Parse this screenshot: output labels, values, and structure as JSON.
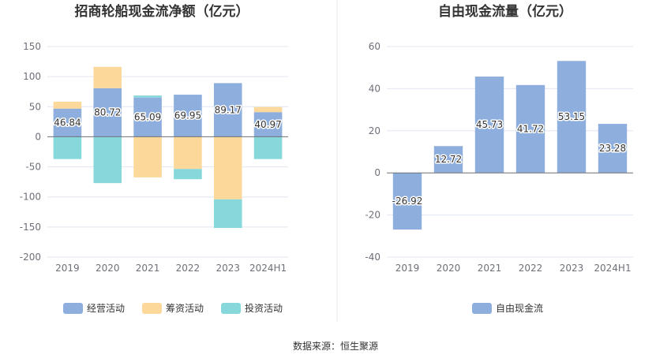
{
  "chart_data": [
    {
      "type": "bar",
      "stacked": true,
      "title": "招商轮船现金流净额（亿元）",
      "categories": [
        "2019",
        "2020",
        "2021",
        "2022",
        "2023",
        "2024H1"
      ],
      "ylim": [
        -200,
        150
      ],
      "yticks": [
        150,
        100,
        50,
        0,
        -50,
        -100,
        -150,
        -200
      ],
      "grid": true,
      "legend_position": "bottom",
      "series": [
        {
          "name": "经营活动",
          "color": "#8eaedd",
          "values": [
            46.84,
            80.72,
            65.09,
            69.95,
            89.17,
            40.97
          ]
        },
        {
          "name": "筹资活动",
          "color": "#fdd89b",
          "values": [
            11.5,
            35.5,
            -67.5,
            -53.5,
            -104,
            8.5
          ]
        },
        {
          "name": "投资活动",
          "color": "#86d8da",
          "values": [
            -37,
            -77,
            3.5,
            -17,
            -47.5,
            -37
          ]
        }
      ],
      "data_labels": [
        "46.84",
        "80.72",
        "65.09",
        "69.95",
        "89.17",
        "40.97"
      ]
    },
    {
      "type": "bar",
      "title": "自由现金流量（亿元）",
      "categories": [
        "2019",
        "2020",
        "2021",
        "2022",
        "2023",
        "2024H1"
      ],
      "ylim": [
        -40,
        60
      ],
      "yticks": [
        60,
        40,
        20,
        0,
        -20,
        -40
      ],
      "grid": true,
      "legend_position": "bottom",
      "series": [
        {
          "name": "自由现金流",
          "color": "#8eaedd",
          "values": [
            -26.92,
            12.72,
            45.73,
            41.72,
            53.15,
            23.28
          ]
        }
      ],
      "data_labels": [
        "-26.92",
        "12.72",
        "45.73",
        "41.72",
        "53.15",
        "23.28"
      ]
    }
  ],
  "footer": {
    "source": "数据来源：恒生聚源"
  }
}
